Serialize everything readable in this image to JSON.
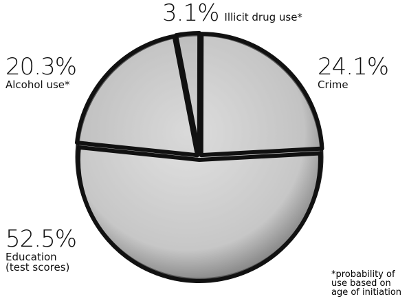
{
  "chart_data": {
    "type": "pie",
    "categories": [
      "Illicit drug use*",
      "Crime",
      "Education (test scores)",
      "Alcohol use*"
    ],
    "values": [
      3.1,
      24.1,
      52.5,
      20.3
    ],
    "value_labels": [
      "3.1%",
      "24.1%",
      "52.5%",
      "20.3%"
    ],
    "colors": [
      "#9a9a9a",
      "#b8b8b8",
      "#c4c4c4",
      "#adadad"
    ],
    "footnote": "*probability of use based on age of initiation"
  }
}
